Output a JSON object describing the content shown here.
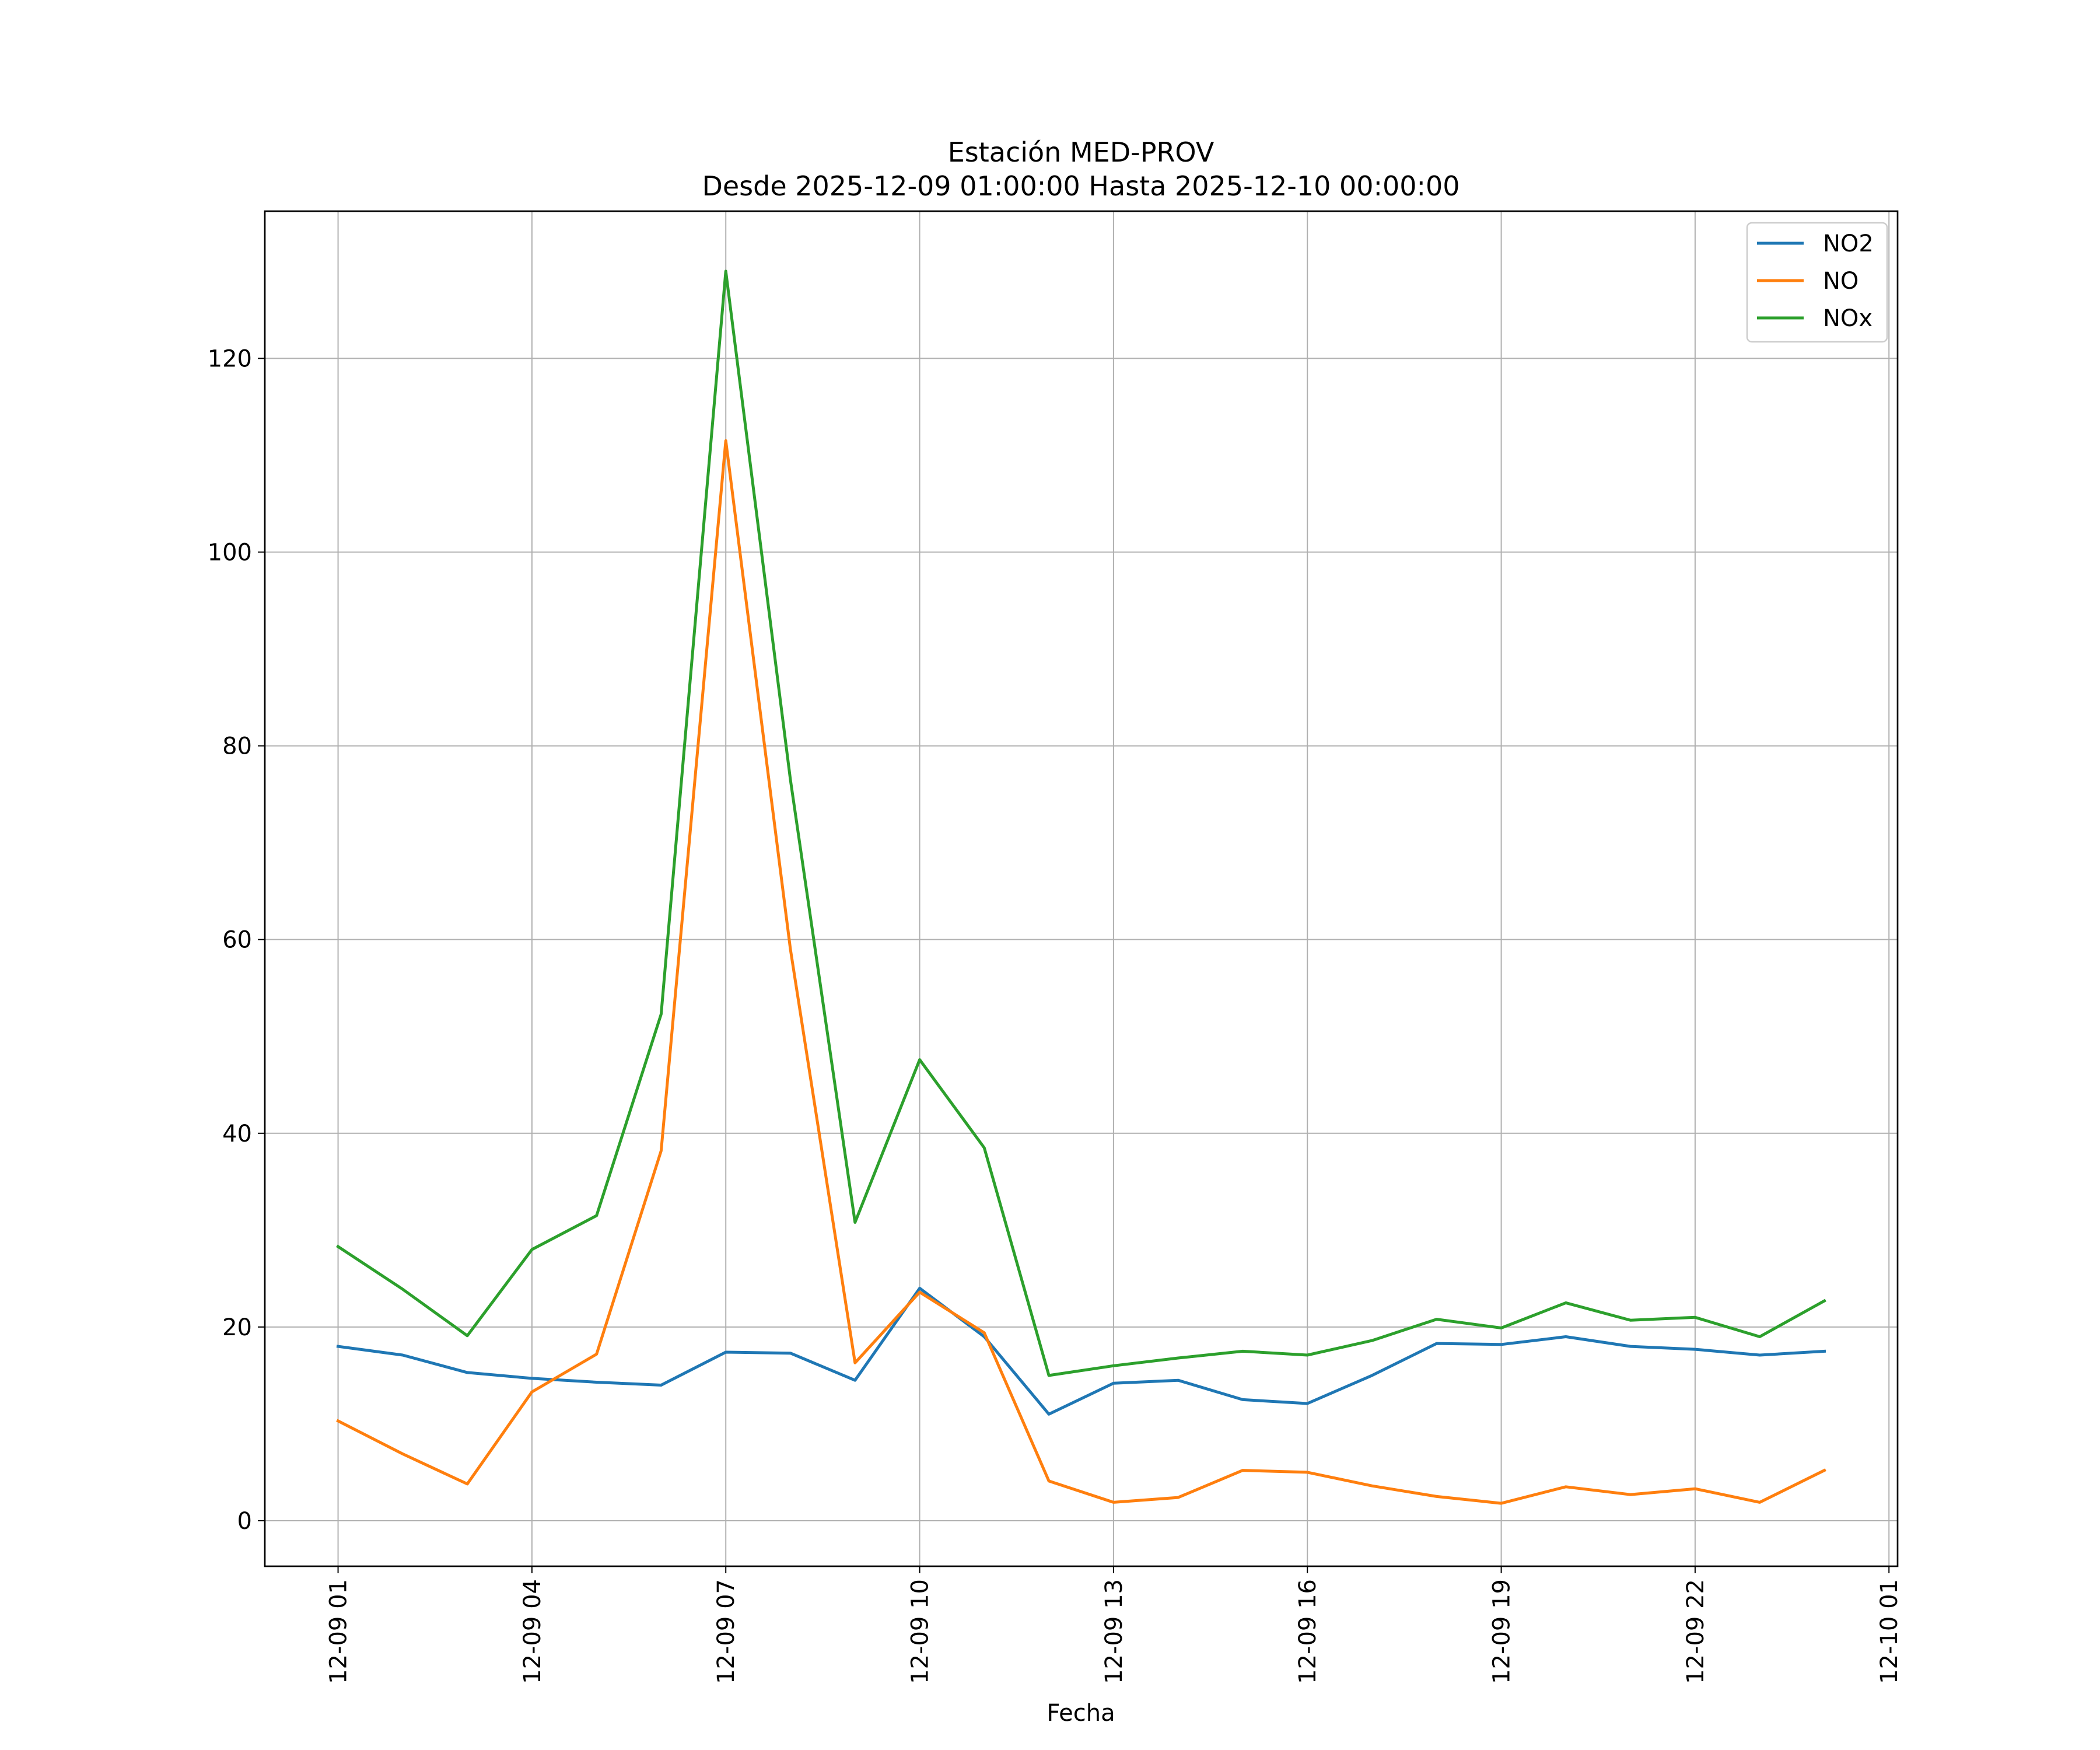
{
  "chart_data": {
    "type": "line",
    "title": "Estación MED-PROV",
    "subtitle": "Desde 2025-12-09 01:00:00 Hasta 2025-12-10 00:00:00",
    "xlabel": "Fecha",
    "ylabel": "",
    "x": [
      "2025-12-09 01:00",
      "2025-12-09 02:00",
      "2025-12-09 03:00",
      "2025-12-09 04:00",
      "2025-12-09 05:00",
      "2025-12-09 06:00",
      "2025-12-09 07:00",
      "2025-12-09 08:00",
      "2025-12-09 09:00",
      "2025-12-09 10:00",
      "2025-12-09 11:00",
      "2025-12-09 12:00",
      "2025-12-09 13:00",
      "2025-12-09 14:00",
      "2025-12-09 15:00",
      "2025-12-09 16:00",
      "2025-12-09 17:00",
      "2025-12-09 18:00",
      "2025-12-09 19:00",
      "2025-12-09 20:00",
      "2025-12-09 21:00",
      "2025-12-09 22:00",
      "2025-12-09 23:00",
      "2025-12-10 00:00"
    ],
    "xlim": [
      "2025-12-08 23:52",
      "2025-12-10 01:08"
    ],
    "x_ticks": [
      "2025-12-09 01:00",
      "2025-12-09 04:00",
      "2025-12-09 07:00",
      "2025-12-09 10:00",
      "2025-12-09 13:00",
      "2025-12-09 16:00",
      "2025-12-09 19:00",
      "2025-12-09 22:00",
      "2025-12-10 01:00"
    ],
    "x_tick_labels": [
      "12-09 01",
      "12-09 04",
      "12-09 07",
      "12-09 10",
      "12-09 13",
      "12-09 16",
      "12-09 19",
      "12-09 22",
      "12-10 01"
    ],
    "ylim": [
      -4.7,
      135.2
    ],
    "y_ticks": [
      0,
      20,
      40,
      60,
      80,
      100,
      120
    ],
    "y_tick_labels": [
      "0",
      "20",
      "40",
      "60",
      "80",
      "100",
      "120"
    ],
    "grid": true,
    "legend_position": "top-right",
    "series": [
      {
        "name": "NO2",
        "color": "#1f77b4",
        "values": [
          18.0,
          17.1,
          15.3,
          14.7,
          14.3,
          14.0,
          17.4,
          17.3,
          14.5,
          24.0,
          19.0,
          11.0,
          14.2,
          14.5,
          12.5,
          12.1,
          15.0,
          18.3,
          18.2,
          19.0,
          18.0,
          17.7,
          17.1,
          17.5
        ]
      },
      {
        "name": "NO",
        "color": "#ff7f0e",
        "values": [
          10.3,
          6.9,
          3.8,
          13.3,
          17.2,
          38.2,
          111.5,
          59.0,
          16.3,
          23.6,
          19.4,
          4.1,
          1.9,
          2.4,
          5.2,
          5.0,
          3.6,
          2.5,
          1.8,
          3.5,
          2.7,
          3.3,
          1.9,
          5.2
        ]
      },
      {
        "name": "NOx",
        "color": "#2ca02c",
        "values": [
          28.3,
          23.9,
          19.1,
          28.0,
          31.5,
          52.3,
          129.0,
          76.5,
          30.8,
          47.6,
          38.5,
          15.0,
          16.0,
          16.8,
          17.5,
          17.1,
          18.6,
          20.8,
          19.9,
          22.5,
          20.7,
          21.0,
          19.0,
          22.7
        ]
      }
    ]
  }
}
